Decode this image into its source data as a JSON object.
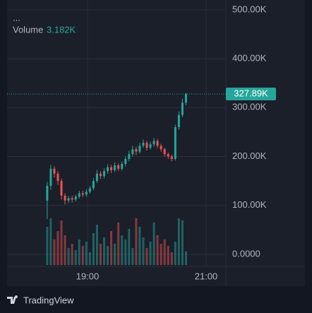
{
  "chart_data": {
    "type": "candlestick",
    "x": [
      18.32,
      18.38,
      18.44,
      18.5,
      18.56,
      18.62,
      18.68,
      18.74,
      18.8,
      18.86,
      18.92,
      18.98,
      19.04,
      19.1,
      19.16,
      19.22,
      19.28,
      19.34,
      19.4,
      19.46,
      19.52,
      19.58,
      19.64,
      19.7,
      19.76,
      19.82,
      19.88,
      19.94,
      20.0,
      20.06,
      20.12,
      20.18,
      20.24,
      20.3,
      20.36,
      20.42,
      20.48,
      20.54,
      20.6,
      20.66
    ],
    "open": [
      110,
      140,
      175,
      165,
      150,
      120,
      110,
      115,
      112,
      118,
      125,
      122,
      128,
      135,
      150,
      165,
      160,
      170,
      178,
      172,
      182,
      175,
      185,
      195,
      205,
      215,
      210,
      222,
      228,
      218,
      225,
      232,
      222,
      215,
      205,
      200,
      195,
      260,
      285,
      310
    ],
    "high": [
      148,
      183,
      180,
      170,
      155,
      125,
      120,
      120,
      122,
      130,
      130,
      133,
      140,
      156,
      172,
      170,
      176,
      184,
      183,
      188,
      186,
      190,
      200,
      212,
      222,
      220,
      228,
      235,
      232,
      230,
      238,
      236,
      226,
      218,
      208,
      204,
      265,
      292,
      318,
      330
    ],
    "low": [
      72,
      132,
      157,
      142,
      112,
      102,
      105,
      106,
      108,
      114,
      117,
      118,
      124,
      131,
      146,
      154,
      155,
      165,
      166,
      168,
      170,
      171,
      180,
      190,
      200,
      203,
      206,
      218,
      212,
      214,
      220,
      217,
      210,
      200,
      195,
      190,
      192,
      255,
      280,
      305
    ],
    "close": [
      140,
      175,
      165,
      150,
      120,
      110,
      115,
      112,
      118,
      125,
      122,
      128,
      135,
      150,
      165,
      160,
      170,
      178,
      172,
      182,
      175,
      185,
      195,
      205,
      215,
      210,
      222,
      228,
      218,
      225,
      232,
      222,
      215,
      205,
      200,
      195,
      260,
      285,
      310,
      327.89
    ],
    "up_color": "#26a69a",
    "down_color": "#ef5350",
    "last_label": "327.89K",
    "volume": {
      "name": "Volume",
      "value_label": "3.182K",
      "values": [
        9000,
        11000,
        6000,
        8000,
        10500,
        7000,
        4000,
        5000,
        3500,
        6000,
        4500,
        5500,
        3000,
        7500,
        9500,
        5000,
        6500,
        4500,
        8000,
        5000,
        10000,
        7000,
        6000,
        8500,
        4000,
        11000,
        9000,
        6500,
        4000,
        5500,
        10000,
        7000,
        5000,
        6000,
        4500,
        3000,
        5500,
        11000,
        10500,
        3182
      ],
      "vlim": [
        0,
        25000
      ]
    },
    "menu": "...",
    "xlim": [
      17.643,
      21.333
    ],
    "xticks": [
      {
        "value": 19,
        "label": "19:00"
      },
      {
        "value": 21,
        "label": "21:00"
      }
    ],
    "ylim": [
      -24.6,
      520
    ],
    "yticks": [
      {
        "value": 0,
        "label": "0.0000"
      },
      {
        "value": 100,
        "label": "100.00K"
      },
      {
        "value": 200,
        "label": "200.00K"
      },
      {
        "value": 300,
        "label": "300.00K"
      },
      {
        "value": 400,
        "label": "400.00K"
      },
      {
        "value": 500,
        "label": "500.00K"
      }
    ],
    "grid": true,
    "brand": "TradingView"
  }
}
